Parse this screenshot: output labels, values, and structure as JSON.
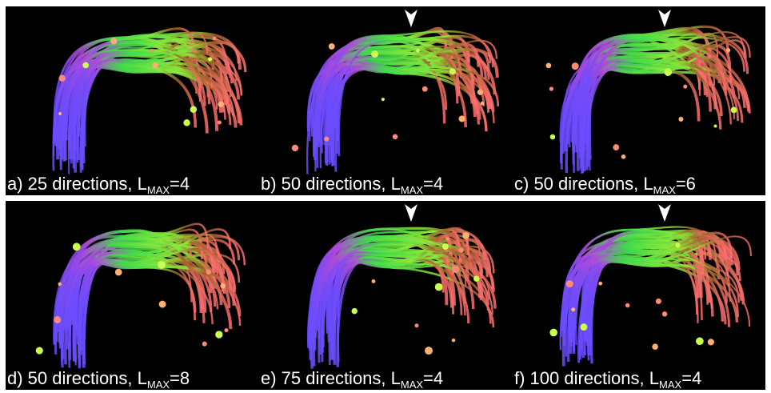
{
  "panels": [
    {
      "label": "a) 25 directions, L",
      "sub": "MAX",
      "value": "=4"
    },
    {
      "label": "b) 50 directions, L",
      "sub": "MAX",
      "value": "=4"
    },
    {
      "label": "c) 50 directions, L",
      "sub": "MAX",
      "value": "=6"
    },
    {
      "label": "d) 50 directions, L",
      "sub": "MAX",
      "value": "=8"
    },
    {
      "label": "e) 75 directions, L",
      "sub": "MAX",
      "value": "=4"
    },
    {
      "label": "f) 100 directions, L",
      "sub": "MAX",
      "value": "=4"
    }
  ]
}
